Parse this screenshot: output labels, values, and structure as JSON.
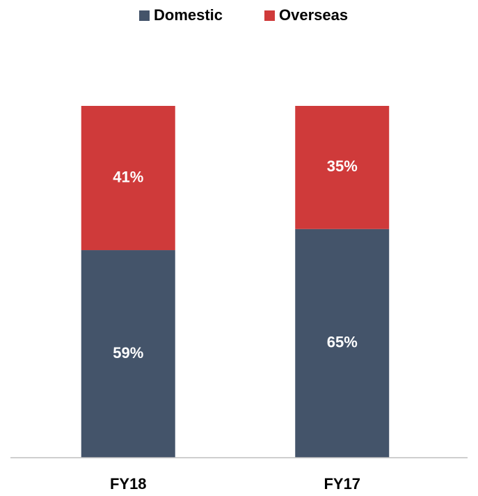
{
  "chart_data": {
    "type": "stacked_bar",
    "categories": [
      "FY18",
      "FY17"
    ],
    "series": [
      {
        "name": "Domestic",
        "color": "#44546a",
        "values": [
          59,
          65
        ],
        "value_labels": [
          "59%",
          "65%"
        ]
      },
      {
        "name": "Overseas",
        "color": "#cf3a3a",
        "values": [
          41,
          35
        ],
        "value_labels": [
          "41%",
          "35%"
        ]
      }
    ],
    "legend": "top"
  }
}
